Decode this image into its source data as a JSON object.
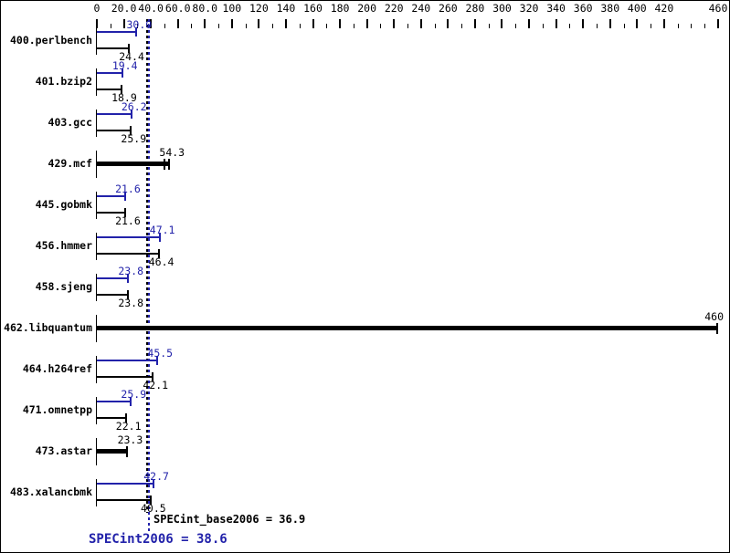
{
  "chart_data": {
    "type": "bar",
    "orientation": "horizontal",
    "legend_position": "none",
    "grid": false,
    "colors": {
      "peak": "#2222aa",
      "base": "#000000"
    },
    "axis": {
      "min": 0,
      "max": 460,
      "minor_tick_step": 10,
      "labels": [
        {
          "v": 0,
          "t": "0"
        },
        {
          "v": 20,
          "t": "20.0"
        },
        {
          "v": 40,
          "t": "40.0"
        },
        {
          "v": 60,
          "t": "60.0"
        },
        {
          "v": 80,
          "t": "80.0"
        },
        {
          "v": 100,
          "t": "100"
        },
        {
          "v": 120,
          "t": "120"
        },
        {
          "v": 140,
          "t": "140"
        },
        {
          "v": 160,
          "t": "160"
        },
        {
          "v": 180,
          "t": "180"
        },
        {
          "v": 200,
          "t": "200"
        },
        {
          "v": 220,
          "t": "220"
        },
        {
          "v": 240,
          "t": "240"
        },
        {
          "v": 260,
          "t": "260"
        },
        {
          "v": 280,
          "t": "280"
        },
        {
          "v": 300,
          "t": "300"
        },
        {
          "v": 320,
          "t": "320"
        },
        {
          "v": 340,
          "t": "340"
        },
        {
          "v": 360,
          "t": "360"
        },
        {
          "v": 380,
          "t": "380"
        },
        {
          "v": 400,
          "t": "400"
        },
        {
          "v": 420,
          "t": "420"
        },
        {
          "v": 460,
          "t": "460"
        }
      ]
    },
    "benchmarks": [
      {
        "name": "400.perlbench",
        "peak": 30.0,
        "base": 24.4,
        "peak_label": "30.0",
        "base_label": "24.4",
        "single_bar": false
      },
      {
        "name": "401.bzip2",
        "peak": 19.4,
        "base": 18.9,
        "peak_label": "19.4",
        "base_label": "18.9",
        "single_bar": false
      },
      {
        "name": "403.gcc",
        "peak": 26.2,
        "base": 25.9,
        "peak_label": "26.2",
        "base_label": "25.9",
        "single_bar": false
      },
      {
        "name": "429.mcf",
        "peak": 54.3,
        "base": 54.3,
        "label": "54.3",
        "single_bar": true,
        "double_end_tick": true
      },
      {
        "name": "445.gobmk",
        "peak": 21.6,
        "base": 21.6,
        "peak_label": "21.6",
        "base_label": "21.6",
        "single_bar": false
      },
      {
        "name": "456.hmmer",
        "peak": 47.1,
        "base": 46.4,
        "peak_label": "47.1",
        "base_label": "46.4",
        "single_bar": false
      },
      {
        "name": "458.sjeng",
        "peak": 23.8,
        "base": 23.8,
        "peak_label": "23.8",
        "base_label": "23.8",
        "single_bar": false
      },
      {
        "name": "462.libquantum",
        "peak": 460,
        "base": 460,
        "label": "460",
        "single_bar": true,
        "double_end_tick": false
      },
      {
        "name": "464.h264ref",
        "peak": 45.5,
        "base": 42.1,
        "peak_label": "45.5",
        "base_label": "42.1",
        "single_bar": false
      },
      {
        "name": "471.omnetpp",
        "peak": 25.9,
        "base": 22.1,
        "peak_label": "25.9",
        "base_label": "22.1",
        "single_bar": false
      },
      {
        "name": "473.astar",
        "peak": 23.3,
        "base": 23.3,
        "label": "23.3",
        "single_bar": true,
        "double_end_tick": false
      },
      {
        "name": "483.xalancbmk",
        "peak": 42.7,
        "base": 40.5,
        "peak_label": "42.7",
        "base_label": "40.5",
        "single_bar": false
      }
    ],
    "reference_lines": [
      {
        "metric": "SPECint_base2006",
        "value": 36.9,
        "color": "#000000"
      },
      {
        "metric": "SPECint2006",
        "value": 38.6,
        "color": "#2222aa"
      }
    ],
    "summary": {
      "base_text": "SPECint_base2006 = 36.9",
      "peak_text": "SPECint2006 = 38.6"
    }
  }
}
